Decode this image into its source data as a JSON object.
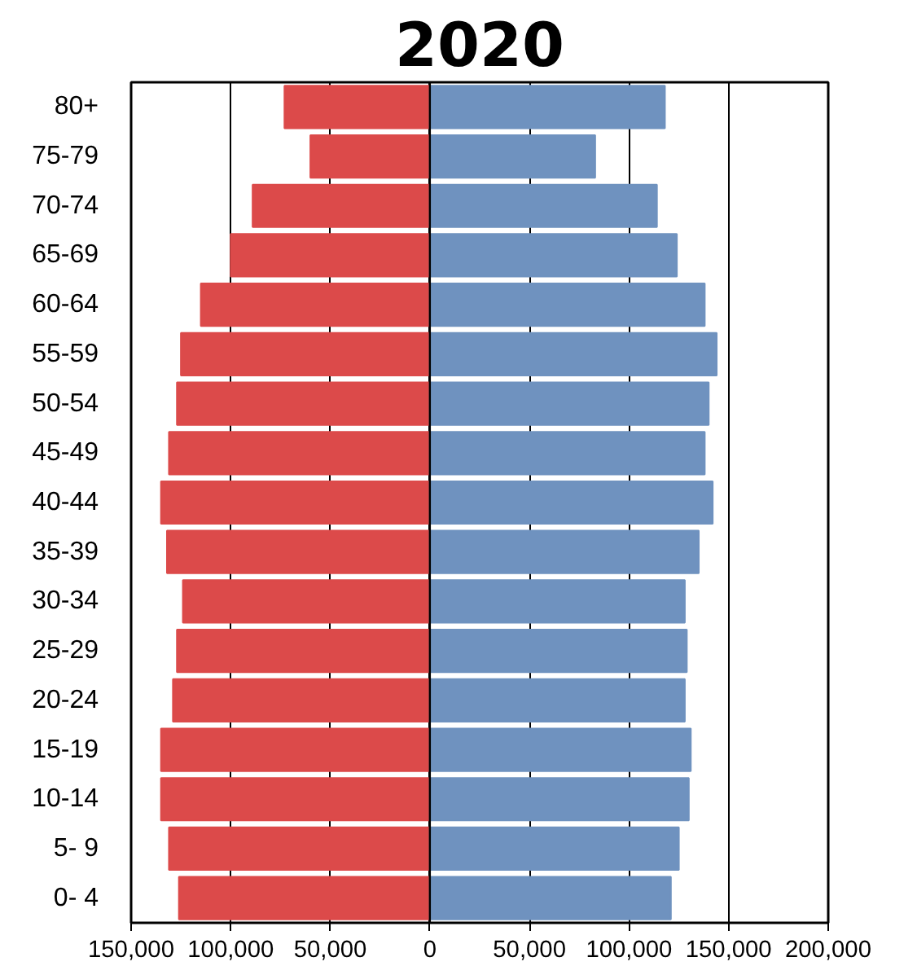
{
  "chart_data": {
    "type": "bar",
    "orientation": "horizontal",
    "title": "2020",
    "categories": [
      "80+",
      "75-79",
      "70-74",
      "65-69",
      "60-64",
      "55-59",
      "50-54",
      "45-49",
      "40-44",
      "35-39",
      "30-34",
      "25-29",
      "20-24",
      "15-19",
      "10-14",
      "5- 9",
      "0- 4"
    ],
    "series": [
      {
        "color": "#dc4a4a",
        "values": [
          -73000,
          -60000,
          -89000,
          -100000,
          -115000,
          -125000,
          -127000,
          -131000,
          -135000,
          -132000,
          -124000,
          -127000,
          -129000,
          -135000,
          -135000,
          -131000,
          -126000
        ]
      },
      {
        "color": "#6f92bf",
        "values": [
          118000,
          83000,
          114000,
          124000,
          138000,
          144000,
          140000,
          138000,
          142000,
          135000,
          128000,
          129000,
          128000,
          131000,
          130000,
          125000,
          121000
        ]
      }
    ],
    "xlim": [
      -150000,
      200000
    ],
    "xticks": [
      {
        "value": -150000,
        "label": "150,000"
      },
      {
        "value": -100000,
        "label": "100,000"
      },
      {
        "value": -50000,
        "label": "50,000"
      },
      0,
      {
        "value": 50000,
        "label": "50,000"
      },
      {
        "value": 100000,
        "label": "100,000"
      },
      {
        "value": 150000,
        "label": "150,000"
      },
      {
        "value": 200000,
        "label": "200,000"
      }
    ],
    "ref_lines": [
      {
        "axis": "x",
        "value": 0,
        "color": "#000000"
      }
    ],
    "grid": "x",
    "stacked": true
  }
}
